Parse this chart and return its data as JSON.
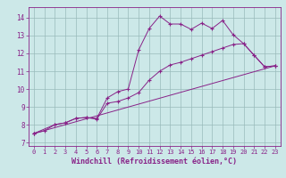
{
  "xlabel": "Windchill (Refroidissement éolien,°C)",
  "bg_color": "#cce8e8",
  "line_color": "#882288",
  "grid_color": "#99bbbb",
  "xlim": [
    -0.5,
    23.5
  ],
  "ylim": [
    6.8,
    14.6
  ],
  "xticks": [
    0,
    1,
    2,
    3,
    4,
    5,
    6,
    7,
    8,
    9,
    10,
    11,
    12,
    13,
    14,
    15,
    16,
    17,
    18,
    19,
    20,
    21,
    22,
    23
  ],
  "yticks": [
    7,
    8,
    9,
    10,
    11,
    12,
    13,
    14
  ],
  "line1_x": [
    0,
    1,
    2,
    3,
    4,
    5,
    6,
    7,
    8,
    9,
    10,
    11,
    12,
    13,
    14,
    15,
    16,
    17,
    18,
    19,
    20,
    21,
    22,
    23
  ],
  "line1_y": [
    7.5,
    7.65,
    8.0,
    8.1,
    8.35,
    8.4,
    8.35,
    9.5,
    9.85,
    10.0,
    12.2,
    13.4,
    14.1,
    13.65,
    13.65,
    13.35,
    13.7,
    13.4,
    13.85,
    13.05,
    12.55,
    11.9,
    11.25,
    11.3
  ],
  "line2_x": [
    0,
    2,
    3,
    4,
    5,
    6,
    7,
    8,
    9,
    10,
    11,
    12,
    13,
    14,
    15,
    16,
    17,
    18,
    19,
    20,
    21,
    22,
    23
  ],
  "line2_y": [
    7.5,
    8.0,
    8.1,
    8.35,
    8.4,
    8.3,
    9.2,
    9.3,
    9.5,
    9.8,
    10.5,
    11.0,
    11.35,
    11.5,
    11.7,
    11.9,
    12.1,
    12.3,
    12.5,
    12.55,
    11.9,
    11.25,
    11.3
  ],
  "line3_x": [
    0,
    23
  ],
  "line3_y": [
    7.5,
    11.3
  ],
  "tick_fontsize": 5,
  "xlabel_fontsize": 6
}
